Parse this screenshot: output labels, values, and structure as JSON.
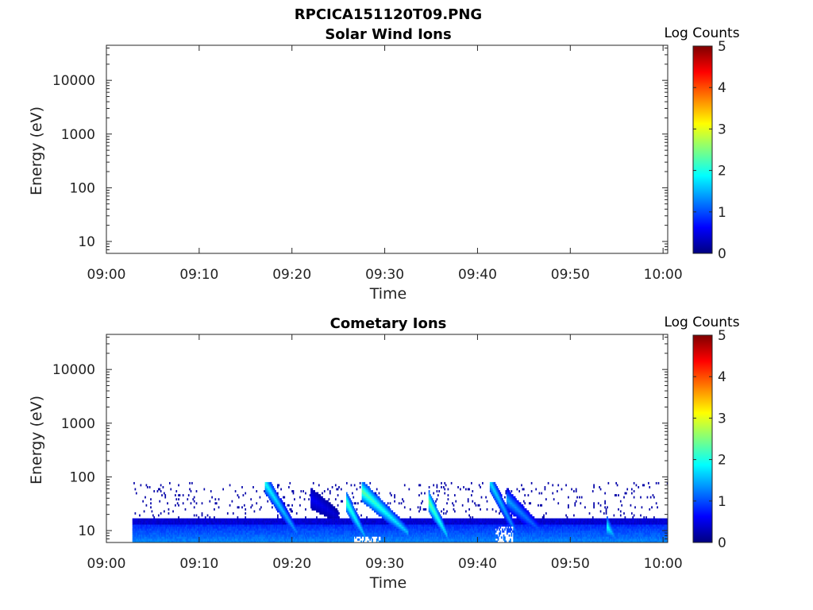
{
  "figure_title": "RPCICA151120T09.PNG",
  "colors": {
    "colormap": [
      "#00007f",
      "#0000ff",
      "#007fff",
      "#00ffff",
      "#7fff7f",
      "#ffff00",
      "#ff7f00",
      "#ff0000",
      "#7f0000"
    ],
    "axis": "#262626"
  },
  "chart_data": [
    {
      "type": "heatmap",
      "title": "Solar Wind Ions",
      "xlabel": "Time",
      "ylabel": "Energy (eV)",
      "x_ticks": [
        "09:00",
        "09:10",
        "09:20",
        "09:30",
        "09:40",
        "09:50",
        "10:00"
      ],
      "x_range_minutes": [
        0,
        60.5
      ],
      "y_scale": "log",
      "y_range": [
        6,
        45000
      ],
      "y_ticks": [
        10,
        100,
        1000,
        10000
      ],
      "y_tick_labels": [
        "10",
        "100",
        "1000",
        "10000"
      ],
      "colorbar": {
        "label": "Log Counts",
        "range": [
          0,
          5
        ],
        "ticks": [
          "0",
          "1",
          "2",
          "3",
          "4",
          "5"
        ]
      },
      "data_description": "empty"
    },
    {
      "type": "heatmap",
      "title": "Cometary Ions",
      "xlabel": "Time",
      "ylabel": "Energy (eV)",
      "x_ticks": [
        "09:00",
        "09:10",
        "09:20",
        "09:30",
        "09:40",
        "09:50",
        "10:00"
      ],
      "x_range_minutes": [
        0,
        60.5
      ],
      "y_scale": "log",
      "y_range": [
        6,
        45000
      ],
      "y_ticks": [
        10,
        100,
        1000,
        10000
      ],
      "y_tick_labels": [
        "10",
        "100",
        "1000",
        "10000"
      ],
      "colorbar": {
        "label": "Log Counts",
        "range": [
          0,
          5
        ],
        "ticks": [
          "0",
          "1",
          "2",
          "3",
          "4",
          "5"
        ]
      },
      "data_start_minute": 2.8,
      "data_end_minute": 60.5,
      "band": {
        "energy_low_eV": 6,
        "energy_core_top_eV": 17,
        "energy_sparse_top_eV": 80,
        "core_log_counts": 1.3,
        "dense_log_counts": 0.4,
        "sparse_log_counts": 0.2
      },
      "features": [
        {
          "start_minute": 17.0,
          "duration_minutes": 3.5,
          "peak_energy_eV": 80,
          "end_energy_eV": 9,
          "log_counts": 2.0
        },
        {
          "start_minute": 22.0,
          "duration_minutes": 3.0,
          "peak_energy_eV": 40,
          "end_energy_eV": 18,
          "log_counts": 0.6
        },
        {
          "start_minute": 25.8,
          "duration_minutes": 2.0,
          "peak_energy_eV": 35,
          "end_energy_eV": 8,
          "log_counts": 2.3
        },
        {
          "start_minute": 27.5,
          "duration_minutes": 5.0,
          "peak_energy_eV": 55,
          "end_energy_eV": 9,
          "log_counts": 2.4
        },
        {
          "start_minute": 34.7,
          "duration_minutes": 2.0,
          "peak_energy_eV": 35,
          "end_energy_eV": 8,
          "log_counts": 2.5
        },
        {
          "start_minute": 41.3,
          "duration_minutes": 3.0,
          "peak_energy_eV": 80,
          "end_energy_eV": 8,
          "log_counts": 1.8
        },
        {
          "start_minute": 43.0,
          "duration_minutes": 4.0,
          "peak_energy_eV": 40,
          "end_energy_eV": 9,
          "log_counts": 1.5
        },
        {
          "start_minute": 53.9,
          "duration_minutes": 0.8,
          "peak_energy_eV": 12,
          "end_energy_eV": 8,
          "log_counts": 2.0
        }
      ],
      "gaps": [
        {
          "start_minute": 26.6,
          "end_minute": 29.5,
          "max_energy_eV": 8
        },
        {
          "start_minute": 41.8,
          "end_minute": 43.8,
          "max_energy_eV": 12
        }
      ]
    }
  ]
}
